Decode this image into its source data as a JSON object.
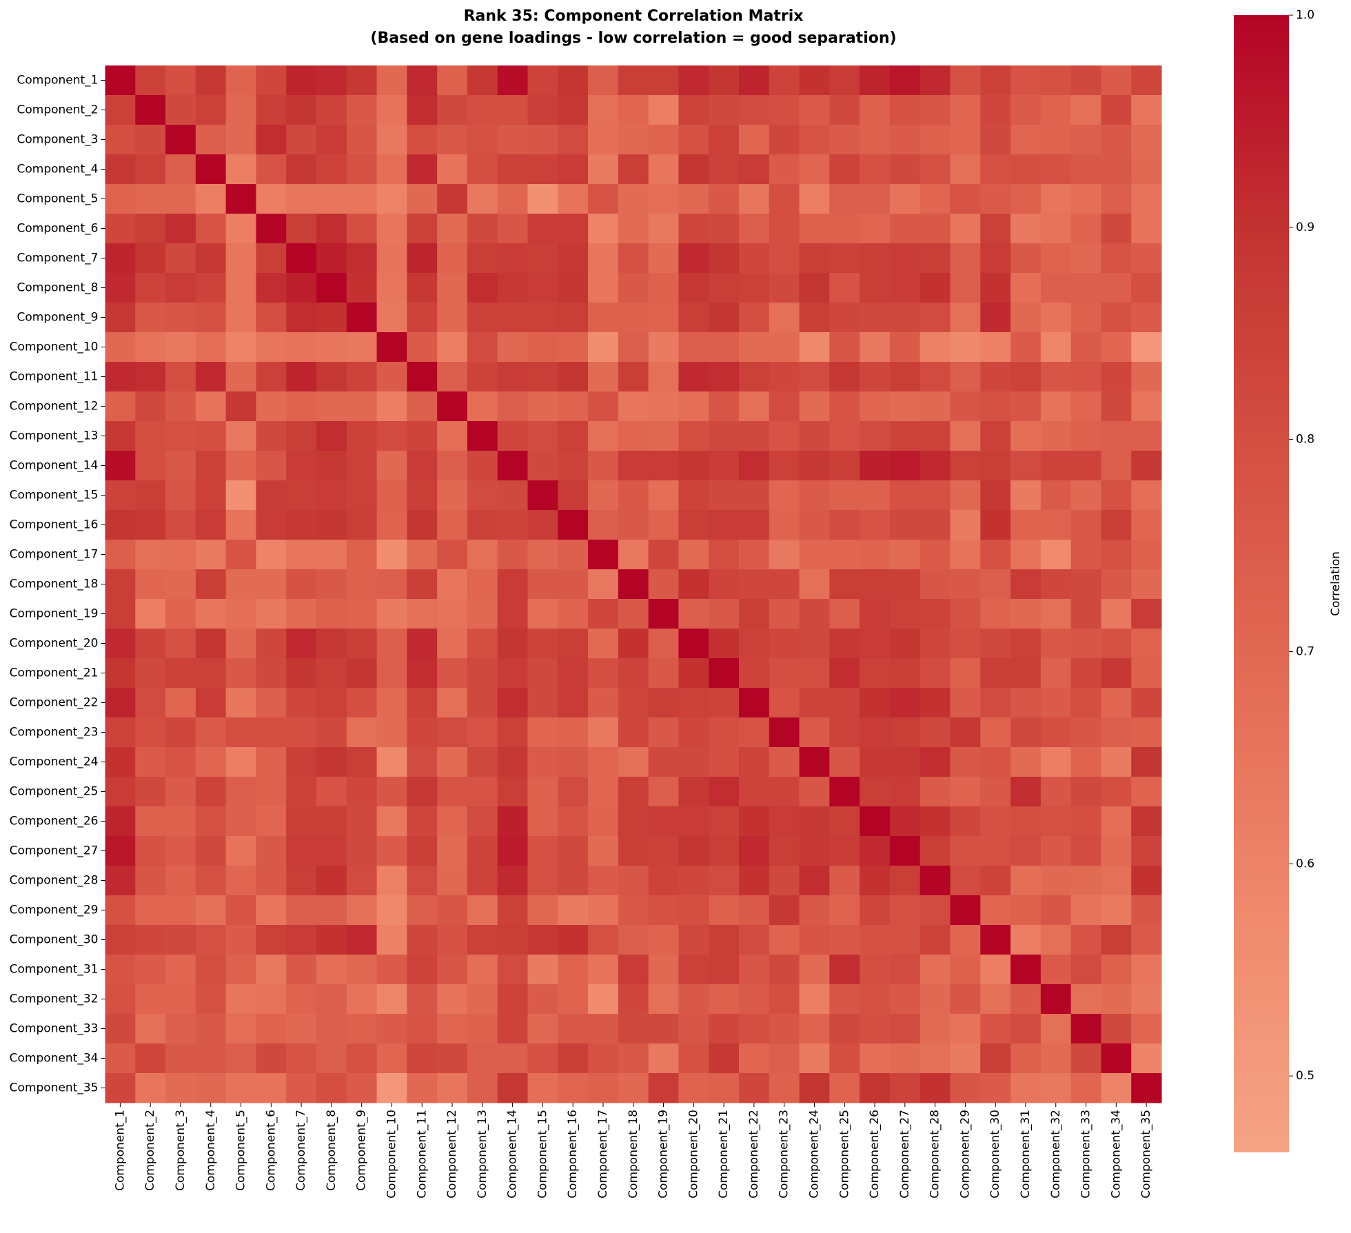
{
  "chart_data": {
    "type": "heatmap",
    "title": "Rank 35: Component Correlation Matrix",
    "subtitle": "(Based on gene loadings - low correlation = good separation)",
    "colorbar_label": "Correlation",
    "colormap": [
      "#f6a385",
      "#f08b6e",
      "#e46e56",
      "#d65244",
      "#c43532",
      "#b40426"
    ],
    "clim": [
      0.464,
      1.0
    ],
    "cticks": [
      0.5,
      0.6,
      0.7,
      0.8,
      0.9,
      {
        "value": 1.0,
        "label": "1.0"
      }
    ],
    "categories": [
      "Component_1",
      "Component_2",
      "Component_3",
      "Component_4",
      "Component_5",
      "Component_6",
      "Component_7",
      "Component_8",
      "Component_9",
      "Component_10",
      "Component_11",
      "Component_12",
      "Component_13",
      "Component_14",
      "Component_15",
      "Component_16",
      "Component_17",
      "Component_18",
      "Component_19",
      "Component_20",
      "Component_21",
      "Component_22",
      "Component_23",
      "Component_24",
      "Component_25",
      "Component_26",
      "Component_27",
      "Component_28",
      "Component_29",
      "Component_30",
      "Component_31",
      "Component_32",
      "Component_33",
      "Component_34",
      "Component_35"
    ],
    "values": [
      [
        1,
        0.85,
        0.8,
        0.88,
        0.72,
        0.83,
        0.93,
        0.92,
        0.88,
        0.7,
        0.92,
        0.73,
        0.88,
        0.98,
        0.84,
        0.89,
        0.74,
        0.86,
        0.86,
        0.92,
        0.89,
        0.93,
        0.84,
        0.9,
        0.87,
        0.93,
        0.96,
        0.92,
        0.79,
        0.85,
        0.78,
        0.79,
        0.82,
        0.75,
        0.83
      ],
      [
        0.85,
        1,
        0.82,
        0.85,
        0.7,
        0.86,
        0.89,
        0.84,
        0.76,
        0.66,
        0.91,
        0.82,
        0.8,
        0.8,
        0.86,
        0.88,
        0.67,
        0.71,
        0.62,
        0.84,
        0.82,
        0.81,
        0.8,
        0.75,
        0.82,
        0.73,
        0.79,
        0.77,
        0.71,
        0.83,
        0.75,
        0.72,
        0.67,
        0.83,
        0.65
      ],
      [
        0.8,
        0.82,
        1,
        0.74,
        0.7,
        0.91,
        0.82,
        0.87,
        0.77,
        0.64,
        0.8,
        0.76,
        0.79,
        0.76,
        0.77,
        0.81,
        0.68,
        0.7,
        0.72,
        0.79,
        0.85,
        0.71,
        0.83,
        0.78,
        0.75,
        0.73,
        0.75,
        0.73,
        0.71,
        0.82,
        0.71,
        0.72,
        0.74,
        0.76,
        0.69
      ],
      [
        0.88,
        0.85,
        0.74,
        1,
        0.62,
        0.78,
        0.88,
        0.84,
        0.79,
        0.68,
        0.92,
        0.66,
        0.8,
        0.85,
        0.85,
        0.87,
        0.63,
        0.86,
        0.65,
        0.89,
        0.85,
        0.87,
        0.75,
        0.71,
        0.84,
        0.79,
        0.82,
        0.79,
        0.67,
        0.79,
        0.8,
        0.79,
        0.76,
        0.76,
        0.7
      ],
      [
        0.72,
        0.7,
        0.7,
        0.62,
        1,
        0.62,
        0.65,
        0.65,
        0.65,
        0.6,
        0.7,
        0.88,
        0.64,
        0.71,
        0.55,
        0.66,
        0.78,
        0.69,
        0.68,
        0.7,
        0.76,
        0.65,
        0.8,
        0.62,
        0.74,
        0.74,
        0.66,
        0.71,
        0.78,
        0.75,
        0.73,
        0.65,
        0.68,
        0.74,
        0.66
      ],
      [
        0.83,
        0.86,
        0.91,
        0.78,
        0.62,
        1,
        0.86,
        0.91,
        0.8,
        0.65,
        0.85,
        0.69,
        0.82,
        0.77,
        0.87,
        0.87,
        0.6,
        0.69,
        0.64,
        0.83,
        0.82,
        0.74,
        0.8,
        0.73,
        0.73,
        0.71,
        0.76,
        0.76,
        0.65,
        0.85,
        0.64,
        0.66,
        0.72,
        0.82,
        0.66
      ],
      [
        0.93,
        0.89,
        0.82,
        0.88,
        0.65,
        0.86,
        1,
        0.94,
        0.91,
        0.66,
        0.93,
        0.72,
        0.86,
        0.87,
        0.86,
        0.88,
        0.65,
        0.79,
        0.69,
        0.92,
        0.89,
        0.83,
        0.8,
        0.86,
        0.85,
        0.86,
        0.87,
        0.86,
        0.74,
        0.87,
        0.76,
        0.72,
        0.7,
        0.78,
        0.75
      ],
      [
        0.92,
        0.84,
        0.87,
        0.84,
        0.65,
        0.91,
        0.94,
        1,
        0.9,
        0.65,
        0.88,
        0.7,
        0.91,
        0.88,
        0.87,
        0.89,
        0.65,
        0.76,
        0.73,
        0.88,
        0.86,
        0.85,
        0.82,
        0.89,
        0.78,
        0.86,
        0.87,
        0.9,
        0.74,
        0.9,
        0.68,
        0.74,
        0.74,
        0.74,
        0.8
      ],
      [
        0.88,
        0.76,
        0.77,
        0.79,
        0.65,
        0.8,
        0.91,
        0.9,
        1,
        0.64,
        0.84,
        0.7,
        0.85,
        0.85,
        0.85,
        0.86,
        0.73,
        0.73,
        0.72,
        0.86,
        0.89,
        0.8,
        0.67,
        0.86,
        0.83,
        0.82,
        0.82,
        0.81,
        0.67,
        0.92,
        0.7,
        0.66,
        0.73,
        0.79,
        0.75
      ],
      [
        0.7,
        0.66,
        0.64,
        0.68,
        0.6,
        0.65,
        0.66,
        0.65,
        0.64,
        1,
        0.75,
        0.62,
        0.81,
        0.7,
        0.73,
        0.72,
        0.56,
        0.74,
        0.63,
        0.74,
        0.74,
        0.69,
        0.69,
        0.58,
        0.77,
        0.64,
        0.75,
        0.61,
        0.58,
        0.61,
        0.75,
        0.59,
        0.75,
        0.71,
        0.52
      ],
      [
        0.92,
        0.91,
        0.8,
        0.92,
        0.7,
        0.85,
        0.93,
        0.88,
        0.84,
        0.75,
        1,
        0.74,
        0.84,
        0.87,
        0.86,
        0.89,
        0.69,
        0.86,
        0.67,
        0.92,
        0.91,
        0.85,
        0.83,
        0.81,
        0.88,
        0.83,
        0.86,
        0.81,
        0.74,
        0.83,
        0.84,
        0.77,
        0.78,
        0.83,
        0.7
      ],
      [
        0.73,
        0.82,
        0.76,
        0.66,
        0.88,
        0.69,
        0.72,
        0.7,
        0.7,
        0.62,
        0.74,
        1,
        0.68,
        0.74,
        0.7,
        0.72,
        0.79,
        0.65,
        0.66,
        0.68,
        0.77,
        0.67,
        0.81,
        0.69,
        0.78,
        0.71,
        0.69,
        0.7,
        0.77,
        0.79,
        0.77,
        0.66,
        0.71,
        0.82,
        0.65
      ],
      [
        0.88,
        0.8,
        0.79,
        0.8,
        0.64,
        0.82,
        0.86,
        0.91,
        0.85,
        0.81,
        0.84,
        0.68,
        1,
        0.83,
        0.81,
        0.85,
        0.67,
        0.71,
        0.7,
        0.8,
        0.82,
        0.82,
        0.78,
        0.82,
        0.78,
        0.81,
        0.84,
        0.84,
        0.67,
        0.85,
        0.68,
        0.7,
        0.73,
        0.74,
        0.74
      ],
      [
        0.98,
        0.8,
        0.76,
        0.85,
        0.71,
        0.77,
        0.87,
        0.88,
        0.85,
        0.7,
        0.87,
        0.74,
        0.83,
        1,
        0.82,
        0.84,
        0.76,
        0.87,
        0.87,
        0.89,
        0.87,
        0.91,
        0.85,
        0.88,
        0.86,
        0.94,
        0.95,
        0.92,
        0.85,
        0.86,
        0.81,
        0.84,
        0.84,
        0.74,
        0.88
      ],
      [
        0.84,
        0.86,
        0.77,
        0.85,
        0.55,
        0.87,
        0.86,
        0.87,
        0.85,
        0.73,
        0.86,
        0.7,
        0.81,
        0.82,
        1,
        0.87,
        0.7,
        0.76,
        0.68,
        0.84,
        0.82,
        0.82,
        0.71,
        0.75,
        0.73,
        0.73,
        0.79,
        0.79,
        0.7,
        0.88,
        0.63,
        0.75,
        0.7,
        0.79,
        0.68
      ],
      [
        0.89,
        0.88,
        0.81,
        0.87,
        0.66,
        0.87,
        0.88,
        0.89,
        0.86,
        0.72,
        0.89,
        0.72,
        0.85,
        0.84,
        0.87,
        1,
        0.74,
        0.76,
        0.72,
        0.86,
        0.87,
        0.87,
        0.72,
        0.76,
        0.81,
        0.78,
        0.82,
        0.82,
        0.63,
        0.9,
        0.72,
        0.72,
        0.76,
        0.86,
        0.71
      ],
      [
        0.74,
        0.67,
        0.68,
        0.63,
        0.78,
        0.6,
        0.65,
        0.65,
        0.73,
        0.56,
        0.69,
        0.79,
        0.67,
        0.76,
        0.7,
        0.74,
        1,
        0.64,
        0.83,
        0.69,
        0.8,
        0.75,
        0.64,
        0.71,
        0.71,
        0.72,
        0.69,
        0.75,
        0.66,
        0.79,
        0.66,
        0.57,
        0.76,
        0.79,
        0.73
      ],
      [
        0.86,
        0.71,
        0.7,
        0.86,
        0.69,
        0.69,
        0.79,
        0.76,
        0.73,
        0.74,
        0.86,
        0.65,
        0.71,
        0.87,
        0.76,
        0.76,
        0.64,
        1,
        0.76,
        0.9,
        0.84,
        0.83,
        0.83,
        0.67,
        0.86,
        0.86,
        0.86,
        0.77,
        0.76,
        0.74,
        0.87,
        0.83,
        0.82,
        0.76,
        0.7
      ],
      [
        0.86,
        0.62,
        0.72,
        0.65,
        0.68,
        0.64,
        0.69,
        0.73,
        0.72,
        0.63,
        0.67,
        0.66,
        0.7,
        0.87,
        0.68,
        0.72,
        0.83,
        0.76,
        1,
        0.74,
        0.76,
        0.86,
        0.76,
        0.82,
        0.74,
        0.87,
        0.85,
        0.84,
        0.79,
        0.72,
        0.7,
        0.67,
        0.82,
        0.64,
        0.87
      ],
      [
        0.92,
        0.84,
        0.79,
        0.89,
        0.7,
        0.83,
        0.92,
        0.88,
        0.86,
        0.74,
        0.92,
        0.68,
        0.8,
        0.89,
        0.84,
        0.86,
        0.69,
        0.9,
        0.74,
        1,
        0.9,
        0.85,
        0.83,
        0.82,
        0.88,
        0.87,
        0.89,
        0.83,
        0.8,
        0.82,
        0.85,
        0.76,
        0.77,
        0.79,
        0.72
      ],
      [
        0.89,
        0.82,
        0.85,
        0.85,
        0.76,
        0.82,
        0.89,
        0.86,
        0.89,
        0.74,
        0.91,
        0.77,
        0.82,
        0.87,
        0.82,
        0.87,
        0.8,
        0.84,
        0.76,
        0.9,
        1,
        0.84,
        0.8,
        0.8,
        0.91,
        0.85,
        0.86,
        0.81,
        0.73,
        0.86,
        0.86,
        0.73,
        0.83,
        0.88,
        0.73
      ],
      [
        0.93,
        0.81,
        0.71,
        0.87,
        0.65,
        0.74,
        0.83,
        0.85,
        0.8,
        0.69,
        0.85,
        0.67,
        0.82,
        0.91,
        0.82,
        0.87,
        0.75,
        0.83,
        0.86,
        0.85,
        0.84,
        1,
        0.78,
        0.84,
        0.84,
        0.9,
        0.92,
        0.9,
        0.75,
        0.81,
        0.77,
        0.75,
        0.8,
        0.71,
        0.83
      ],
      [
        0.84,
        0.8,
        0.83,
        0.75,
        0.8,
        0.8,
        0.8,
        0.82,
        0.67,
        0.69,
        0.83,
        0.81,
        0.78,
        0.85,
        0.71,
        0.72,
        0.64,
        0.83,
        0.76,
        0.83,
        0.8,
        0.78,
        1,
        0.75,
        0.84,
        0.87,
        0.86,
        0.82,
        0.88,
        0.72,
        0.82,
        0.8,
        0.77,
        0.74,
        0.73
      ],
      [
        0.9,
        0.75,
        0.78,
        0.71,
        0.62,
        0.73,
        0.86,
        0.89,
        0.86,
        0.58,
        0.81,
        0.69,
        0.82,
        0.88,
        0.75,
        0.76,
        0.71,
        0.67,
        0.82,
        0.82,
        0.8,
        0.84,
        0.75,
        1,
        0.77,
        0.88,
        0.88,
        0.91,
        0.76,
        0.78,
        0.69,
        0.62,
        0.72,
        0.63,
        0.89
      ],
      [
        0.87,
        0.82,
        0.75,
        0.84,
        0.74,
        0.73,
        0.85,
        0.78,
        0.83,
        0.77,
        0.88,
        0.78,
        0.78,
        0.86,
        0.73,
        0.81,
        0.71,
        0.86,
        0.74,
        0.88,
        0.91,
        0.84,
        0.84,
        0.77,
        1,
        0.86,
        0.87,
        0.75,
        0.72,
        0.76,
        0.91,
        0.77,
        0.82,
        0.8,
        0.72
      ],
      [
        0.93,
        0.73,
        0.73,
        0.79,
        0.74,
        0.71,
        0.86,
        0.86,
        0.82,
        0.64,
        0.83,
        0.71,
        0.81,
        0.94,
        0.73,
        0.78,
        0.72,
        0.86,
        0.87,
        0.87,
        0.85,
        0.9,
        0.87,
        0.88,
        0.86,
        1,
        0.92,
        0.9,
        0.83,
        0.79,
        0.8,
        0.79,
        0.8,
        0.68,
        0.89
      ],
      [
        0.96,
        0.79,
        0.75,
        0.82,
        0.66,
        0.76,
        0.87,
        0.87,
        0.82,
        0.75,
        0.86,
        0.69,
        0.84,
        0.95,
        0.79,
        0.82,
        0.69,
        0.86,
        0.85,
        0.89,
        0.86,
        0.92,
        0.86,
        0.88,
        0.87,
        0.92,
        1,
        0.86,
        0.79,
        0.79,
        0.81,
        0.76,
        0.81,
        0.69,
        0.84
      ],
      [
        0.92,
        0.77,
        0.73,
        0.79,
        0.71,
        0.76,
        0.86,
        0.9,
        0.81,
        0.61,
        0.81,
        0.7,
        0.84,
        0.92,
        0.79,
        0.82,
        0.75,
        0.77,
        0.84,
        0.83,
        0.81,
        0.9,
        0.82,
        0.91,
        0.75,
        0.9,
        0.86,
        1,
        0.81,
        0.84,
        0.68,
        0.7,
        0.69,
        0.67,
        0.9
      ],
      [
        0.79,
        0.71,
        0.71,
        0.67,
        0.78,
        0.65,
        0.74,
        0.74,
        0.67,
        0.58,
        0.74,
        0.77,
        0.67,
        0.85,
        0.7,
        0.63,
        0.66,
        0.76,
        0.79,
        0.8,
        0.73,
        0.75,
        0.88,
        0.76,
        0.72,
        0.83,
        0.79,
        0.81,
        1,
        0.71,
        0.73,
        0.77,
        0.66,
        0.63,
        0.77
      ],
      [
        0.85,
        0.83,
        0.82,
        0.79,
        0.75,
        0.85,
        0.87,
        0.9,
        0.92,
        0.61,
        0.83,
        0.79,
        0.85,
        0.86,
        0.88,
        0.9,
        0.79,
        0.74,
        0.72,
        0.82,
        0.86,
        0.81,
        0.72,
        0.78,
        0.76,
        0.79,
        0.79,
        0.84,
        0.71,
        1,
        0.62,
        0.67,
        0.78,
        0.86,
        0.75
      ],
      [
        0.78,
        0.75,
        0.71,
        0.8,
        0.73,
        0.64,
        0.76,
        0.68,
        0.7,
        0.75,
        0.84,
        0.77,
        0.68,
        0.81,
        0.63,
        0.72,
        0.66,
        0.87,
        0.7,
        0.85,
        0.86,
        0.77,
        0.82,
        0.69,
        0.91,
        0.8,
        0.81,
        0.68,
        0.73,
        0.62,
        1,
        0.75,
        0.81,
        0.73,
        0.65
      ],
      [
        0.79,
        0.72,
        0.72,
        0.79,
        0.65,
        0.66,
        0.72,
        0.74,
        0.66,
        0.59,
        0.77,
        0.66,
        0.7,
        0.84,
        0.75,
        0.72,
        0.57,
        0.83,
        0.67,
        0.76,
        0.73,
        0.75,
        0.8,
        0.62,
        0.77,
        0.79,
        0.76,
        0.7,
        0.77,
        0.67,
        0.75,
        1,
        0.67,
        0.69,
        0.64
      ],
      [
        0.82,
        0.67,
        0.74,
        0.76,
        0.68,
        0.72,
        0.7,
        0.74,
        0.73,
        0.75,
        0.78,
        0.71,
        0.73,
        0.84,
        0.7,
        0.76,
        0.76,
        0.82,
        0.82,
        0.77,
        0.83,
        0.8,
        0.77,
        0.72,
        0.82,
        0.8,
        0.81,
        0.69,
        0.66,
        0.78,
        0.81,
        0.67,
        1,
        0.82,
        0.71
      ],
      [
        0.75,
        0.83,
        0.76,
        0.76,
        0.74,
        0.82,
        0.78,
        0.74,
        0.79,
        0.71,
        0.83,
        0.82,
        0.74,
        0.74,
        0.79,
        0.86,
        0.79,
        0.76,
        0.64,
        0.79,
        0.88,
        0.71,
        0.74,
        0.63,
        0.8,
        0.68,
        0.69,
        0.67,
        0.63,
        0.86,
        0.73,
        0.69,
        0.82,
        1,
        0.6
      ],
      [
        0.83,
        0.65,
        0.69,
        0.7,
        0.66,
        0.66,
        0.75,
        0.8,
        0.75,
        0.52,
        0.7,
        0.65,
        0.74,
        0.88,
        0.68,
        0.71,
        0.73,
        0.7,
        0.87,
        0.72,
        0.73,
        0.83,
        0.73,
        0.89,
        0.72,
        0.89,
        0.84,
        0.9,
        0.77,
        0.75,
        0.65,
        0.64,
        0.71,
        0.6,
        1
      ]
    ]
  }
}
